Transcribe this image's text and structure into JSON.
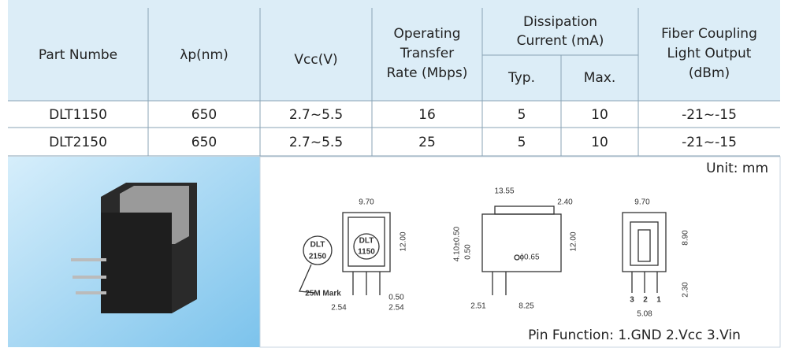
{
  "table": {
    "header": {
      "part": "Part Numbe",
      "wavelength": "λp(nm)",
      "vcc": "Vcc(V)",
      "rate": [
        "Operating",
        "Transfer",
        "Rate (Mbps)"
      ],
      "current": [
        "Dissipation",
        "Current (mA)"
      ],
      "typ": "Typ.",
      "max": "Max.",
      "output": [
        "Fiber Coupling",
        "Light Output",
        "(dBm)"
      ]
    },
    "rows": [
      [
        "DLT1150",
        "650",
        "2.7~5.5",
        "16",
        "5",
        "10",
        "-21~-15"
      ],
      [
        "DLT2150",
        "650",
        "2.7~5.5",
        "25",
        "5",
        "10",
        "-21~-15"
      ]
    ]
  },
  "drawing": {
    "unit": "Unit:  mm",
    "pin_function": "Pin Function: 1.GND   2.Vcc   3.Vin",
    "front": {
      "width": "9.70",
      "height": "12.00",
      "mark_a": [
        "DLT",
        "2150"
      ],
      "mark_b": [
        "DLT",
        "1150"
      ],
      "mark_note": "25M Mark",
      "pin_width": "0.50",
      "pitch_a": "2.54",
      "pitch_b": "2.54"
    },
    "side": {
      "length": "13.55",
      "tab": "2.40",
      "offset": "4.10±0.50",
      "offset_small": "0.50",
      "hole": "ϕ0.65",
      "height": "12.00",
      "pin_a": "2.51",
      "pin_b": "8.25"
    },
    "rear": {
      "width": "9.70",
      "height": "8.90",
      "pin_len": "2.30",
      "pins": [
        "3",
        "2",
        "1"
      ],
      "span": "5.08"
    }
  }
}
